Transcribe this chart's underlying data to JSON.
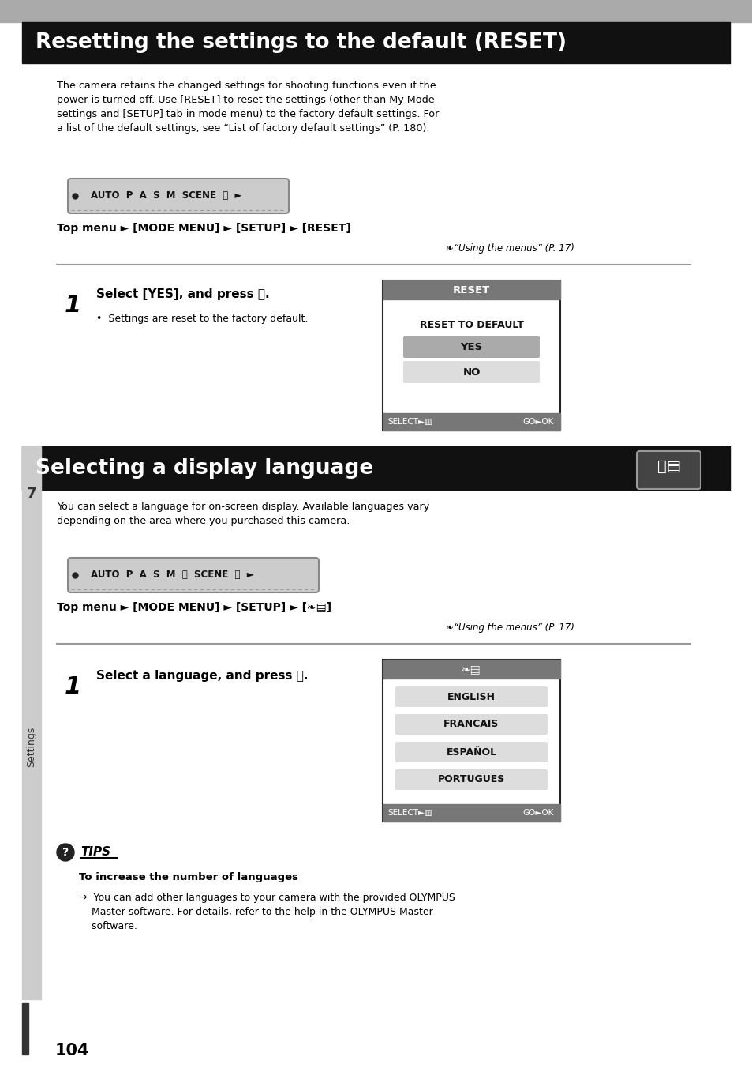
{
  "title1": "Resetting the settings to the default (RESET)",
  "title1_bg": "#111111",
  "title1_color": "#ffffff",
  "title2": "Selecting a display language",
  "title2_bg": "#111111",
  "title2_color": "#ffffff",
  "body_color": "#000000",
  "bg_color": "#ffffff",
  "para1": "The camera retains the changed settings for shooting functions even if the\npower is turned off. Use [RESET] to reset the settings (other than My Mode\nsettings and [SETUP] tab in mode menu) to the factory default settings. For\na list of the default settings, see “List of factory default settings” (P. 180).",
  "topmenu1": "Top menu ► [MODE MENU] ► [SETUP] ► [RESET]",
  "using_menus": "❧“Using the menus” (P. 17)",
  "step1_title1": "Select [YES], and press Ⓐ.",
  "step1_body1": "•  Settings are reset to the factory default.",
  "reset_screen_title": "RESET",
  "reset_to_default": "RESET TO DEFAULT",
  "yes_label": "YES",
  "no_label": "NO",
  "select_label": "SELECT►▥",
  "go_label": "GO►",
  "ok_label": "OK",
  "para2": "You can select a language for on-screen display. Available languages vary\ndepending on the area where you purchased this camera.",
  "topmenu2": "Top menu ► [MODE MENU] ► [SETUP] ► [❧▤]",
  "step2_title": "Select a language, and press Ⓐ.",
  "lang_screen_title": "❧▤",
  "languages": [
    "ENGLISH",
    "FRANCAIS",
    "ESPAÑOL",
    "PORTUGUES"
  ],
  "tips_title": "TIPS",
  "tips_head": "To increase the number of languages",
  "tips_body": "→  You can add other languages to your camera with the provided OLYMPUS\n    Master software. For details, refer to the help in the OLYMPUS Master\n    software.",
  "page_number": "104",
  "section_label": "Settings",
  "section_number": "7"
}
